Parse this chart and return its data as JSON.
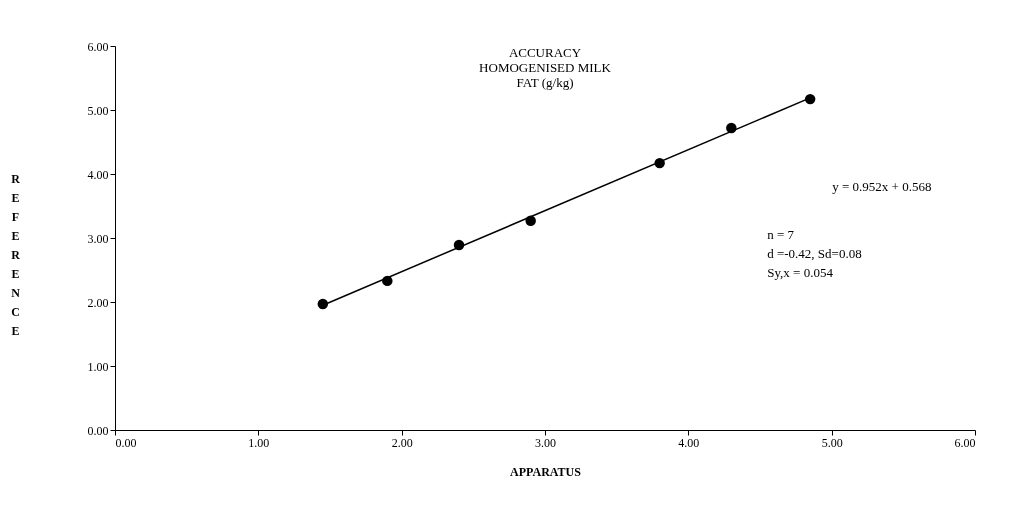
{
  "chart_data": {
    "type": "scatter",
    "title": "ACCURACY",
    "subtitle": [
      "HOMOGENISED MILK",
      "FAT (g/kg)"
    ],
    "xlabel": "APPARATUS",
    "ylabel": "REFERENCE",
    "xlim": [
      0,
      6
    ],
    "ylim": [
      0,
      6
    ],
    "xticks": [
      {
        "value": 0,
        "label": "0.00"
      },
      {
        "value": 1,
        "label": "1.00"
      },
      {
        "value": 2,
        "label": "2.00"
      },
      {
        "value": 3,
        "label": "3.00"
      },
      {
        "value": 4,
        "label": "4.00"
      },
      {
        "value": 5,
        "label": "5.00"
      },
      {
        "value": 6,
        "label": "6.00"
      }
    ],
    "yticks": [
      {
        "value": 0,
        "label": "0.00"
      },
      {
        "value": 1,
        "label": "1.00"
      },
      {
        "value": 2,
        "label": "2.00"
      },
      {
        "value": 3,
        "label": "3.00"
      },
      {
        "value": 4,
        "label": "4.00"
      },
      {
        "value": 5,
        "label": "5.00"
      },
      {
        "value": 6,
        "label": "6.00"
      }
    ],
    "grid": false,
    "series": [
      {
        "marker": "circle",
        "color": "#000000",
        "x": [
          1.45,
          1.9,
          2.4,
          2.9,
          3.8,
          4.3,
          4.85
        ],
        "values": [
          1.97,
          2.33,
          2.89,
          3.27,
          4.17,
          4.72,
          5.17
        ]
      },
      {
        "type": "line",
        "marker": "none",
        "line_style": "solid",
        "color": "#000000",
        "x": [
          1.45,
          4.85
        ],
        "values": [
          1.95,
          5.19
        ]
      }
    ],
    "annotations": [
      "y = 0.952x + 0.568",
      "n = 7",
      "d =-0.42,  Sd=0.08",
      "Sy,x = 0.054"
    ]
  }
}
